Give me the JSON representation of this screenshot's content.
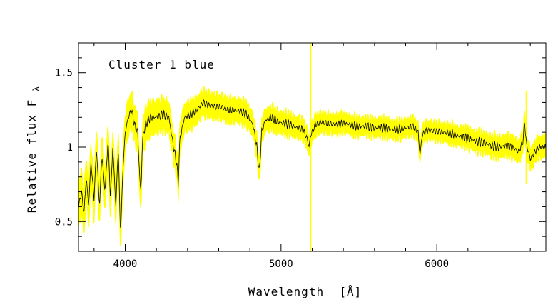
{
  "chart_data": {
    "type": "line",
    "title": "",
    "annotation": "Cluster 1 blue",
    "xlabel": "Wavelength  [Å]",
    "ylabel": "Relative flux F",
    "ylabel_subscript": "λ",
    "xlim": [
      3700,
      6700
    ],
    "ylim": [
      0.3,
      1.7
    ],
    "x_ticks": [
      4000,
      5000,
      6000
    ],
    "x_tick_labels": [
      "4000",
      "5000",
      "6000"
    ],
    "y_ticks": [
      0.5,
      1,
      1.5
    ],
    "y_tick_labels": [
      "0.5",
      "1",
      "1.5"
    ],
    "grid": false,
    "legend": "none",
    "colors": {
      "mean_line": "#000000",
      "band": "#ffff00"
    },
    "series": [
      {
        "role": "mean spectrum",
        "x": [
          3700,
          3720,
          3735,
          3750,
          3765,
          3780,
          3800,
          3815,
          3835,
          3850,
          3870,
          3890,
          3905,
          3920,
          3940,
          3955,
          3970,
          3985,
          4000,
          4020,
          4040,
          4060,
          4080,
          4095,
          4102,
          4110,
          4130,
          4160,
          4200,
          4240,
          4280,
          4310,
          4330,
          4340,
          4350,
          4380,
          4420,
          4460,
          4500,
          4540,
          4580,
          4620,
          4660,
          4700,
          4740,
          4780,
          4820,
          4845,
          4861,
          4875,
          4900,
          4940,
          4980,
          5020,
          5060,
          5100,
          5140,
          5170,
          5180,
          5190,
          5220,
          5260,
          5300,
          5350,
          5400,
          5450,
          5500,
          5550,
          5600,
          5650,
          5700,
          5750,
          5800,
          5850,
          5880,
          5893,
          5905,
          5930,
          5980,
          6050,
          6100,
          6150,
          6200,
          6250,
          6300,
          6350,
          6400,
          6450,
          6500,
          6520,
          6540,
          6555,
          6563,
          6575,
          6600,
          6650,
          6700
        ],
        "y": [
          0.6,
          0.7,
          0.55,
          0.8,
          0.6,
          0.9,
          0.65,
          1.0,
          0.6,
          0.95,
          0.7,
          1.05,
          0.65,
          1.0,
          0.6,
          1.0,
          0.4,
          0.85,
          1.1,
          1.2,
          1.25,
          1.15,
          1.1,
          0.75,
          0.7,
          1.05,
          1.15,
          1.2,
          1.2,
          1.22,
          1.2,
          1.0,
          0.9,
          0.75,
          1.05,
          1.2,
          1.22,
          1.25,
          1.3,
          1.28,
          1.27,
          1.27,
          1.25,
          1.25,
          1.24,
          1.22,
          1.15,
          1.0,
          0.82,
          1.1,
          1.18,
          1.2,
          1.17,
          1.16,
          1.15,
          1.13,
          1.12,
          1.05,
          1.0,
          1.08,
          1.15,
          1.17,
          1.16,
          1.15,
          1.16,
          1.15,
          1.14,
          1.14,
          1.13,
          1.13,
          1.12,
          1.12,
          1.13,
          1.14,
          1.1,
          0.94,
          1.08,
          1.11,
          1.11,
          1.1,
          1.09,
          1.07,
          1.06,
          1.04,
          1.03,
          1.01,
          1.0,
          1.01,
          0.99,
          0.97,
          1.0,
          1.05,
          1.18,
          1.02,
          0.92,
          1.0,
          1.0
        ]
      },
      {
        "role": "scatter band (half-width)",
        "x": [
          3700,
          4000,
          4500,
          5000,
          5500,
          6000,
          6500,
          6700
        ],
        "y": [
          0.12,
          0.1,
          0.07,
          0.06,
          0.05,
          0.05,
          0.06,
          0.06
        ]
      }
    ],
    "spikes": [
      {
        "x": 5190,
        "y_low": 0.3,
        "y_high": 1.7
      },
      {
        "x": 6575,
        "y_low": 0.75,
        "y_high": 1.38
      }
    ]
  }
}
